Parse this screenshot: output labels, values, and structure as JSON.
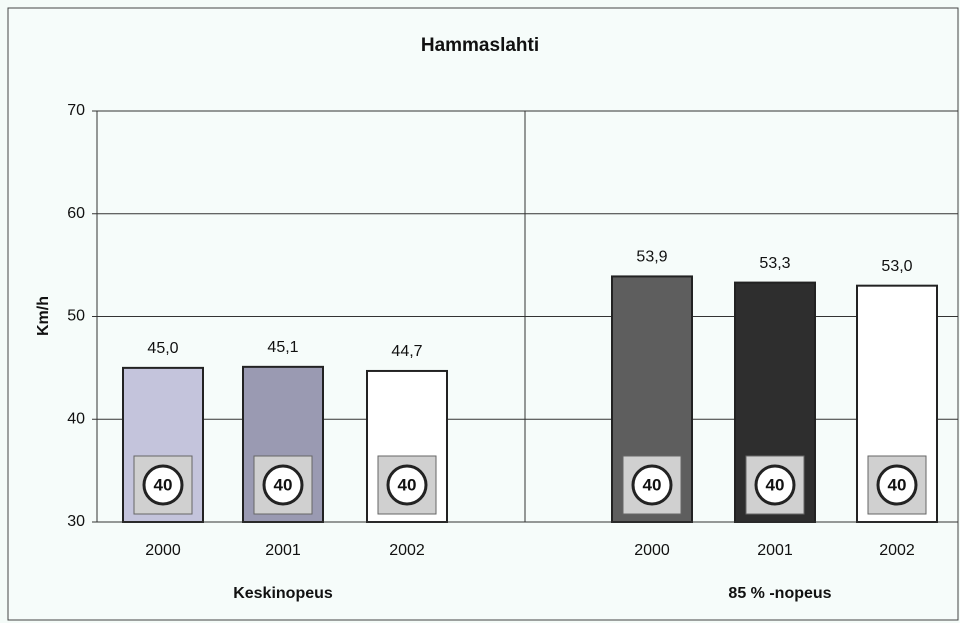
{
  "chart_data": {
    "type": "bar",
    "title": "Hammaslahti",
    "y_label": "Km/h",
    "ylim": [
      30,
      70
    ],
    "yticks": [
      30,
      40,
      50,
      60,
      70
    ],
    "grid": true,
    "sign": "40",
    "groups": [
      {
        "name": "Keskinopeus",
        "categories": [
          "2000",
          "2001",
          "2002"
        ],
        "values": [
          45.0,
          45.1,
          44.7
        ],
        "value_labels": [
          "45,0",
          "45,1",
          "44,7"
        ],
        "colors": [
          "#c4c4dc",
          "#9a9ab2",
          "#ffffff"
        ]
      },
      {
        "name": "85 % -nopeus",
        "categories": [
          "2000",
          "2001",
          "2002"
        ],
        "values": [
          53.9,
          53.3,
          53.0
        ],
        "value_labels": [
          "53,9",
          "53,3",
          "53,0"
        ],
        "colors": [
          "#5e5e5e",
          "#2e2e2e",
          "#ffffff"
        ]
      }
    ]
  }
}
